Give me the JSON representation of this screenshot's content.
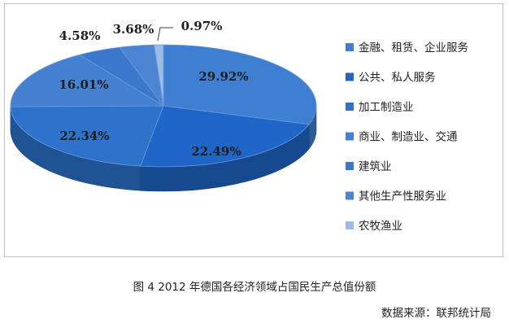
{
  "chart_data": {
    "type": "pie",
    "title": "",
    "legend_position": "right",
    "slices": [
      {
        "label": "金融、租赁、企业服务",
        "value": 29.92,
        "value_label": "29.92%",
        "color": "#3f7fd1"
      },
      {
        "label": "公共、私人服务",
        "value": 22.49,
        "value_label": "22.49%",
        "color": "#1f66c8"
      },
      {
        "label": "加工制造业",
        "value": 22.34,
        "value_label": "22.34%",
        "color": "#2d73cc"
      },
      {
        "label": "商业、制造业、交通",
        "value": 16.01,
        "value_label": "16.01%",
        "color": "#4680d0"
      },
      {
        "label": "建筑业",
        "value": 4.58,
        "value_label": "4.58%",
        "color": "#3a78cc"
      },
      {
        "label": "其他生产性服务业",
        "value": 3.68,
        "value_label": "3.68%",
        "color": "#4d84d2"
      },
      {
        "label": "农牧渔业",
        "value": 0.97,
        "value_label": "0.97%",
        "color": "#9dbbe6"
      }
    ]
  },
  "caption": "图 4  2012 年德国各经济领域占国民生产总值份额",
  "source": "数据来源：联邦统计局"
}
